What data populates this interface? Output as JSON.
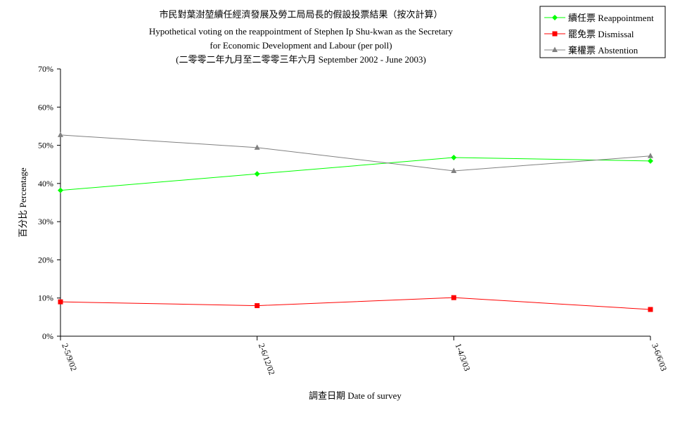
{
  "chart_data": {
    "type": "line",
    "title": [
      "市民對葉澍堃續任經濟發展及勞工局局長的假設投票結果（按次計算）",
      "Hypothetical voting on the reappointment of Stephen Ip Shu-kwan as the Secretary",
      "for Economic Development and Labour (per poll)",
      "(二零零二年九月至二零零三年六月 September 2002 - June 2003)"
    ],
    "xlabel": "調查日期 Date of survey",
    "ylabel": "百分比 Percentage",
    "categories": [
      "2-5/9/02",
      "2-6/12/02",
      "1-4/3/03",
      "3-6/6/03"
    ],
    "ylim": [
      0,
      70
    ],
    "yticks": [
      "0%",
      "10%",
      "20%",
      "30%",
      "40%",
      "50%",
      "60%",
      "70%"
    ],
    "series": [
      {
        "name": "續任票 Reappointment",
        "color": "#00ff00",
        "marker": "diamond",
        "values": [
          38.2,
          42.5,
          46.8,
          45.9
        ]
      },
      {
        "name": "罷免票 Dismissal",
        "color": "#ff0000",
        "marker": "square",
        "values": [
          9.0,
          8.0,
          10.1,
          7.0
        ]
      },
      {
        "name": "棄權票 Abstention",
        "color": "#808080",
        "marker": "triangle",
        "values": [
          52.7,
          49.4,
          43.3,
          47.2
        ]
      }
    ],
    "grid": false,
    "legend": "top-right"
  }
}
